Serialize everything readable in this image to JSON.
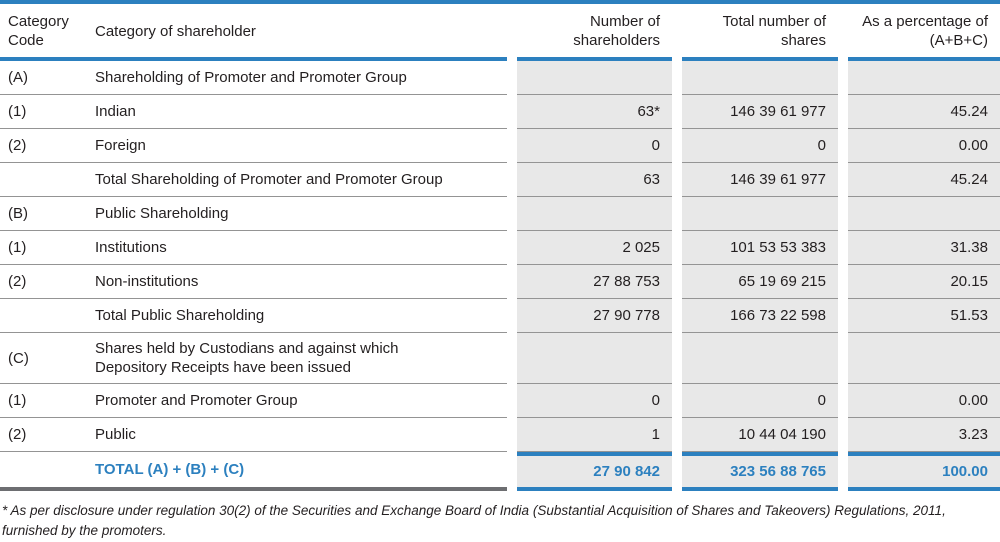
{
  "colors": {
    "accent_blue": "#2c80bf",
    "cell_gray": "#e8e8e8",
    "separator_gray": "#949494",
    "bottom_bar_gray": "#6d6e71",
    "text": "#231f20"
  },
  "table": {
    "headers": {
      "code": "Category Code",
      "category": "Category of shareholder",
      "shareholders": "Number of shareholders",
      "shares": "Total number of shares",
      "pct": "As a percentage of (A+B+C)"
    },
    "rows": [
      {
        "code": "(A)",
        "category": "Shareholding of Promoter and Promoter Group",
        "shareholders": "",
        "shares": "",
        "pct": ""
      },
      {
        "code": "(1)",
        "category": "Indian",
        "shareholders": "63*",
        "shares": "146 39 61 977",
        "pct": "45.24"
      },
      {
        "code": "(2)",
        "category": "Foreign",
        "shareholders": "0",
        "shares": "0",
        "pct": "0.00"
      },
      {
        "code": "",
        "category": "Total Shareholding of Promoter and Promoter Group",
        "shareholders": "63",
        "shares": "146 39 61 977",
        "pct": "45.24"
      },
      {
        "code": "(B)",
        "category": "Public Shareholding",
        "shareholders": "",
        "shares": "",
        "pct": ""
      },
      {
        "code": "(1)",
        "category": "Institutions",
        "shareholders": "2 025",
        "shares": "101 53 53 383",
        "pct": "31.38"
      },
      {
        "code": "(2)",
        "category": "Non-institutions",
        "shareholders": "27 88 753",
        "shares": "65 19 69 215",
        "pct": "20.15"
      },
      {
        "code": "",
        "category": "Total Public Shareholding",
        "shareholders": "27 90 778",
        "shares": "166 73 22 598",
        "pct": "51.53"
      },
      {
        "code": "(C)",
        "category": "Shares held by Custodians and against which Depository Receipts have been issued",
        "shareholders": "",
        "shares": "",
        "pct": ""
      },
      {
        "code": "(1)",
        "category": "Promoter and Promoter Group",
        "shareholders": "0",
        "shares": "0",
        "pct": "0.00"
      },
      {
        "code": "(2)",
        "category": "Public",
        "shareholders": "1",
        "shares": "10 44 04 190",
        "pct": "3.23"
      },
      {
        "code": "",
        "category": "TOTAL (A) + (B) + (C)",
        "shareholders": "27 90 842",
        "shares": "323 56 88 765",
        "pct": "100.00"
      }
    ],
    "footnote": "* As per disclosure under regulation 30(2) of the Securities and Exchange Board of India (Substantial Acquisition of Shares and Takeovers) Regulations, 2011, furnished by the promoters."
  }
}
